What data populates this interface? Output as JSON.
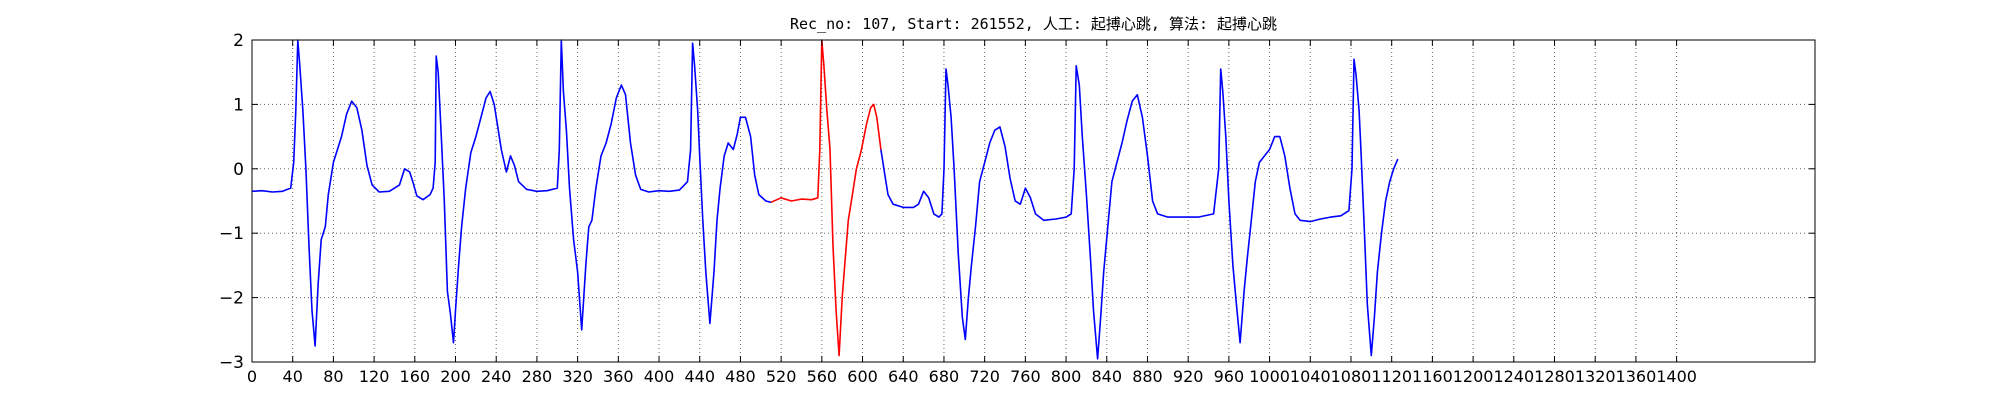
{
  "chart_data": {
    "type": "line",
    "title": "Rec_no: 107, Start: 261552, 人工: 起搏心跳, 算法: 起搏心跳",
    "xlabel": "",
    "ylabel": "",
    "xlim": [
      0,
      1536
    ],
    "ylim": [
      -3,
      2
    ],
    "grid": true,
    "x_tick_values": [
      0,
      40,
      80,
      120,
      160,
      200,
      240,
      280,
      320,
      360,
      400,
      440,
      480,
      520,
      560,
      600,
      640,
      680,
      720,
      760,
      800,
      840,
      880,
      920,
      960,
      1000,
      1040,
      1080,
      1120,
      1160,
      1200,
      1240,
      1280,
      1320,
      1360,
      1400
    ],
    "y_tick_values": [
      -3,
      -2,
      -1,
      0,
      1,
      2
    ],
    "series": [
      {
        "color": "#0000ff",
        "points": [
          [
            0,
            -0.35
          ],
          [
            10,
            -0.34
          ],
          [
            20,
            -0.36
          ],
          [
            30,
            -0.35
          ],
          [
            38,
            -0.3
          ],
          [
            41,
            0.1
          ],
          [
            43,
            0.9
          ],
          [
            45,
            2.0
          ],
          [
            47,
            1.6
          ],
          [
            50,
            0.9
          ],
          [
            53,
            0.0
          ],
          [
            56,
            -1.2
          ],
          [
            59,
            -2.2
          ],
          [
            62,
            -2.75
          ],
          [
            65,
            -1.8
          ],
          [
            68,
            -1.1
          ],
          [
            72,
            -0.9
          ],
          [
            75,
            -0.4
          ],
          [
            80,
            0.1
          ],
          [
            88,
            0.5
          ],
          [
            93,
            0.85
          ],
          [
            98,
            1.05
          ],
          [
            103,
            0.95
          ],
          [
            108,
            0.6
          ],
          [
            113,
            0.05
          ],
          [
            118,
            -0.25
          ],
          [
            125,
            -0.36
          ],
          [
            135,
            -0.35
          ],
          [
            145,
            -0.25
          ],
          [
            150,
            0.0
          ],
          [
            155,
            -0.05
          ],
          [
            158,
            -0.2
          ],
          [
            162,
            -0.42
          ],
          [
            168,
            -0.48
          ],
          [
            175,
            -0.4
          ],
          [
            178,
            -0.3
          ],
          [
            180,
            0.1
          ],
          [
            181,
            1.75
          ],
          [
            183,
            1.5
          ],
          [
            186,
            0.5
          ],
          [
            189,
            -0.5
          ],
          [
            192,
            -1.9
          ],
          [
            195,
            -2.25
          ],
          [
            198,
            -2.7
          ],
          [
            200,
            -2.2
          ],
          [
            203,
            -1.5
          ],
          [
            206,
            -0.9
          ],
          [
            210,
            -0.3
          ],
          [
            215,
            0.25
          ],
          [
            220,
            0.5
          ],
          [
            225,
            0.8
          ],
          [
            230,
            1.1
          ],
          [
            234,
            1.2
          ],
          [
            238,
            1.0
          ],
          [
            242,
            0.6
          ],
          [
            245,
            0.3
          ],
          [
            250,
            -0.05
          ],
          [
            254,
            0.2
          ],
          [
            258,
            0.05
          ],
          [
            262,
            -0.2
          ],
          [
            270,
            -0.32
          ],
          [
            280,
            -0.35
          ],
          [
            290,
            -0.34
          ],
          [
            300,
            -0.3
          ],
          [
            302,
            0.3
          ],
          [
            304,
            2.0
          ],
          [
            306,
            1.2
          ],
          [
            309,
            0.6
          ],
          [
            312,
            -0.3
          ],
          [
            316,
            -1.1
          ],
          [
            320,
            -1.6
          ],
          [
            324,
            -2.5
          ],
          [
            328,
            -1.5
          ],
          [
            331,
            -0.9
          ],
          [
            334,
            -0.8
          ],
          [
            338,
            -0.3
          ],
          [
            343,
            0.2
          ],
          [
            348,
            0.4
          ],
          [
            353,
            0.7
          ],
          [
            358,
            1.1
          ],
          [
            363,
            1.3
          ],
          [
            367,
            1.15
          ],
          [
            372,
            0.4
          ],
          [
            377,
            -0.1
          ],
          [
            382,
            -0.32
          ],
          [
            390,
            -0.36
          ],
          [
            400,
            -0.34
          ],
          [
            410,
            -0.35
          ],
          [
            420,
            -0.33
          ],
          [
            428,
            -0.2
          ],
          [
            431,
            0.3
          ],
          [
            433,
            1.95
          ],
          [
            435,
            1.6
          ],
          [
            438,
            0.9
          ],
          [
            440,
            0.2
          ],
          [
            443,
            -0.8
          ],
          [
            446,
            -1.6
          ],
          [
            450,
            -2.4
          ],
          [
            454,
            -1.6
          ],
          [
            457,
            -0.8
          ],
          [
            460,
            -0.3
          ],
          [
            464,
            0.2
          ],
          [
            468,
            0.4
          ],
          [
            473,
            0.3
          ],
          [
            477,
            0.55
          ],
          [
            480,
            0.8
          ],
          [
            485,
            0.8
          ],
          [
            490,
            0.5
          ],
          [
            494,
            -0.1
          ],
          [
            498,
            -0.4
          ],
          [
            505,
            -0.5
          ],
          [
            510,
            -0.52
          ]
        ]
      },
      {
        "color": "#ff0000",
        "points": [
          [
            510,
            -0.52
          ],
          [
            520,
            -0.45
          ],
          [
            530,
            -0.5
          ],
          [
            540,
            -0.47
          ],
          [
            550,
            -0.48
          ],
          [
            556,
            -0.45
          ],
          [
            558,
            0.3
          ],
          [
            560,
            2.0
          ],
          [
            562,
            1.6
          ],
          [
            565,
            0.9
          ],
          [
            568,
            0.3
          ],
          [
            571,
            -1.2
          ],
          [
            574,
            -2.2
          ],
          [
            577,
            -2.9
          ],
          [
            580,
            -2.0
          ],
          [
            583,
            -1.4
          ],
          [
            586,
            -0.8
          ],
          [
            590,
            -0.4
          ],
          [
            594,
            0.0
          ],
          [
            599,
            0.3
          ],
          [
            604,
            0.7
          ],
          [
            608,
            0.95
          ],
          [
            611,
            1.0
          ],
          [
            614,
            0.8
          ],
          [
            618,
            0.3
          ]
        ]
      },
      {
        "color": "#0000ff",
        "points": [
          [
            618,
            0.3
          ],
          [
            622,
            -0.1
          ],
          [
            625,
            -0.4
          ],
          [
            630,
            -0.55
          ],
          [
            640,
            -0.6
          ],
          [
            650,
            -0.6
          ],
          [
            655,
            -0.55
          ],
          [
            660,
            -0.35
          ],
          [
            665,
            -0.45
          ],
          [
            670,
            -0.7
          ],
          [
            675,
            -0.75
          ],
          [
            678,
            -0.7
          ],
          [
            680,
            0.0
          ],
          [
            682,
            1.55
          ],
          [
            684,
            1.3
          ],
          [
            687,
            0.8
          ],
          [
            690,
            0.0
          ],
          [
            694,
            -1.3
          ],
          [
            698,
            -2.3
          ],
          [
            701,
            -2.65
          ],
          [
            704,
            -2.0
          ],
          [
            707,
            -1.5
          ],
          [
            711,
            -0.9
          ],
          [
            715,
            -0.2
          ],
          [
            720,
            0.1
          ],
          [
            725,
            0.4
          ],
          [
            730,
            0.6
          ],
          [
            735,
            0.65
          ],
          [
            740,
            0.35
          ],
          [
            745,
            -0.15
          ],
          [
            750,
            -0.5
          ],
          [
            755,
            -0.55
          ],
          [
            760,
            -0.3
          ],
          [
            765,
            -0.45
          ],
          [
            770,
            -0.7
          ],
          [
            778,
            -0.8
          ],
          [
            790,
            -0.78
          ],
          [
            800,
            -0.75
          ],
          [
            805,
            -0.7
          ],
          [
            808,
            0.0
          ],
          [
            810,
            1.6
          ],
          [
            813,
            1.3
          ],
          [
            816,
            0.5
          ],
          [
            820,
            -0.4
          ],
          [
            824,
            -1.4
          ],
          [
            827,
            -2.2
          ],
          [
            831,
            -2.95
          ],
          [
            834,
            -2.3
          ],
          [
            837,
            -1.6
          ],
          [
            841,
            -0.9
          ],
          [
            845,
            -0.2
          ],
          [
            850,
            0.1
          ],
          [
            855,
            0.4
          ],
          [
            860,
            0.75
          ],
          [
            865,
            1.05
          ],
          [
            870,
            1.15
          ],
          [
            875,
            0.8
          ],
          [
            880,
            0.2
          ],
          [
            885,
            -0.5
          ],
          [
            890,
            -0.7
          ],
          [
            900,
            -0.75
          ],
          [
            915,
            -0.75
          ],
          [
            930,
            -0.75
          ],
          [
            945,
            -0.7
          ],
          [
            950,
            0.0
          ],
          [
            952,
            1.55
          ],
          [
            954,
            1.2
          ],
          [
            957,
            0.5
          ],
          [
            960,
            -0.5
          ],
          [
            964,
            -1.5
          ],
          [
            968,
            -2.2
          ],
          [
            971,
            -2.7
          ],
          [
            975,
            -1.9
          ],
          [
            978,
            -1.4
          ],
          [
            982,
            -0.8
          ],
          [
            986,
            -0.2
          ],
          [
            990,
            0.1
          ],
          [
            995,
            0.2
          ],
          [
            1000,
            0.3
          ],
          [
            1005,
            0.5
          ],
          [
            1010,
            0.5
          ],
          [
            1015,
            0.2
          ],
          [
            1020,
            -0.3
          ],
          [
            1025,
            -0.7
          ],
          [
            1030,
            -0.8
          ],
          [
            1040,
            -0.82
          ],
          [
            1050,
            -0.78
          ],
          [
            1060,
            -0.75
          ],
          [
            1070,
            -0.73
          ],
          [
            1078,
            -0.65
          ],
          [
            1081,
            0.0
          ],
          [
            1083,
            1.7
          ],
          [
            1085,
            1.45
          ],
          [
            1088,
            0.9
          ],
          [
            1090,
            0.2
          ],
          [
            1093,
            -0.9
          ],
          [
            1096,
            -2.1
          ],
          [
            1100,
            -2.9
          ],
          [
            1103,
            -2.3
          ],
          [
            1106,
            -1.6
          ],
          [
            1110,
            -1.0
          ],
          [
            1114,
            -0.5
          ],
          [
            1118,
            -0.2
          ],
          [
            1122,
            0.0
          ],
          [
            1126,
            0.15
          ]
        ]
      }
    ]
  }
}
